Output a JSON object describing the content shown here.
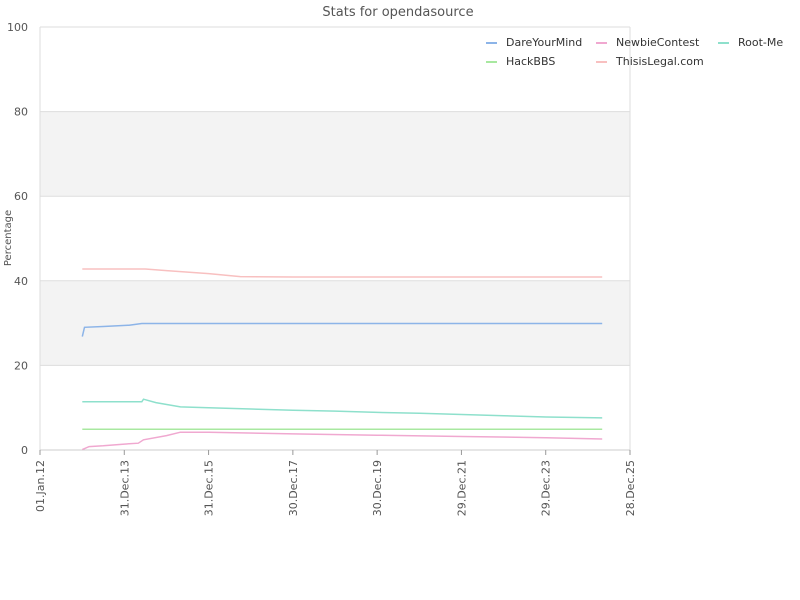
{
  "chart_data": {
    "type": "line",
    "title": "Stats for opendasource",
    "xlabel": "",
    "ylabel": "Percentage",
    "ylim": [
      0,
      100
    ],
    "xlim": [
      "2012-01-01",
      "2025-12-28"
    ],
    "x_ticks": [
      {
        "date": "2012-01-01",
        "label": "01.Jan.12"
      },
      {
        "date": "2013-12-31",
        "label": "31.Dec.13"
      },
      {
        "date": "2015-12-31",
        "label": "31.Dec.15"
      },
      {
        "date": "2017-12-30",
        "label": "30.Dec.17"
      },
      {
        "date": "2019-12-30",
        "label": "30.Dec.19"
      },
      {
        "date": "2021-12-29",
        "label": "29.Dec.21"
      },
      {
        "date": "2023-12-29",
        "label": "29.Dec.23"
      },
      {
        "date": "2025-12-28",
        "label": "28.Dec.25"
      }
    ],
    "y_ticks": [
      0,
      20,
      40,
      60,
      80,
      100
    ],
    "grid": true,
    "bands": [
      [
        20,
        40
      ],
      [
        60,
        80
      ]
    ],
    "legend_position": "top-right",
    "series": [
      {
        "name": "DareYourMind",
        "color": "#8cb4e8",
        "points": [
          [
            "2013-01-01",
            26.8
          ],
          [
            "2013-01-20",
            29.0
          ],
          [
            "2013-07-01",
            29.2
          ],
          [
            "2014-02-10",
            29.5
          ],
          [
            "2014-06-01",
            29.9
          ],
          [
            "2016-01-01",
            29.9
          ],
          [
            "2020-01-01",
            29.9
          ],
          [
            "2025-05-01",
            29.9
          ]
        ]
      },
      {
        "name": "NewbieContest",
        "color": "#f0a8d0",
        "points": [
          [
            "2013-01-01",
            0.1
          ],
          [
            "2013-03-01",
            0.8
          ],
          [
            "2013-07-01",
            1.0
          ],
          [
            "2014-01-01",
            1.4
          ],
          [
            "2014-05-01",
            1.6
          ],
          [
            "2014-06-15",
            2.4
          ],
          [
            "2015-01-01",
            3.4
          ],
          [
            "2015-05-01",
            4.2
          ],
          [
            "2016-01-01",
            4.2
          ],
          [
            "2018-01-01",
            3.8
          ],
          [
            "2020-01-01",
            3.5
          ],
          [
            "2022-01-01",
            3.2
          ],
          [
            "2024-01-01",
            2.9
          ],
          [
            "2025-05-01",
            2.6
          ]
        ]
      },
      {
        "name": "Root-Me",
        "color": "#8ee0cc",
        "points": [
          [
            "2013-01-01",
            11.4
          ],
          [
            "2014-06-01",
            11.4
          ],
          [
            "2014-06-15",
            12.0
          ],
          [
            "2014-10-01",
            11.2
          ],
          [
            "2015-05-01",
            10.2
          ],
          [
            "2016-01-01",
            10.0
          ],
          [
            "2017-01-01",
            9.7
          ],
          [
            "2018-01-01",
            9.4
          ],
          [
            "2019-01-01",
            9.2
          ],
          [
            "2020-01-01",
            8.9
          ],
          [
            "2021-01-01",
            8.7
          ],
          [
            "2022-01-01",
            8.4
          ],
          [
            "2023-01-01",
            8.1
          ],
          [
            "2024-01-01",
            7.8
          ],
          [
            "2025-05-01",
            7.6
          ]
        ]
      },
      {
        "name": "HackBBS",
        "color": "#a8e8a0",
        "points": [
          [
            "2013-01-01",
            4.9
          ],
          [
            "2025-05-01",
            4.9
          ]
        ]
      },
      {
        "name": "ThisisLegal.com",
        "color": "#f8c0c0",
        "points": [
          [
            "2013-01-01",
            42.8
          ],
          [
            "2014-07-01",
            42.8
          ],
          [
            "2015-01-01",
            42.4
          ],
          [
            "2016-01-01",
            41.7
          ],
          [
            "2016-10-01",
            41.0
          ],
          [
            "2018-01-01",
            40.9
          ],
          [
            "2025-05-01",
            40.9
          ]
        ]
      }
    ],
    "legend_layout": [
      [
        "DareYourMind",
        "NewbieContest",
        "Root-Me"
      ],
      [
        "HackBBS",
        "ThisisLegal.com"
      ]
    ]
  }
}
